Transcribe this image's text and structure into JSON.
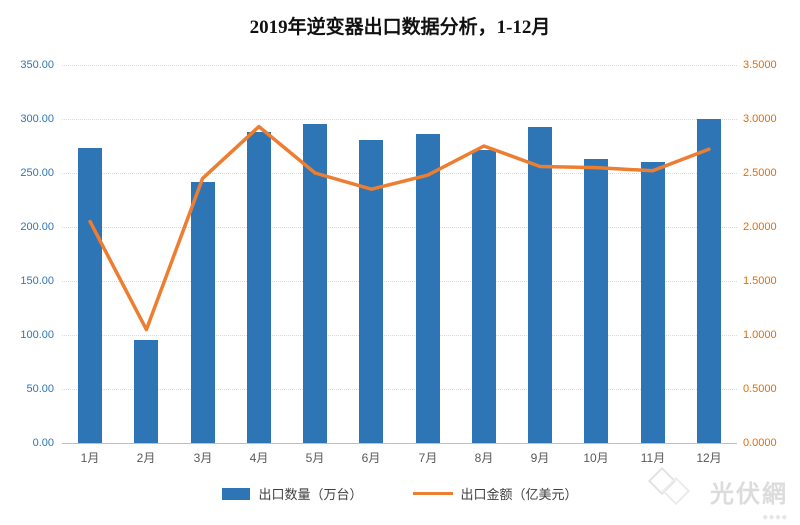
{
  "title": "2019年逆变器出口数据分析，1-12月",
  "chart_data": {
    "type": "bar+line combo",
    "title": "2019年逆变器出口数据分析，1-12月",
    "categories": [
      "1月",
      "2月",
      "3月",
      "4月",
      "5月",
      "6月",
      "7月",
      "8月",
      "9月",
      "10月",
      "11月",
      "12月"
    ],
    "series": [
      {
        "name": "出口数量（万台）",
        "type": "bar",
        "axis": "left",
        "color": "#2E75B6",
        "values": [
          273,
          95,
          242,
          288,
          295,
          281,
          286,
          271,
          293,
          263,
          260,
          300
        ]
      },
      {
        "name": "出口金额（亿美元）",
        "type": "line",
        "axis": "right",
        "color": "#ED7D31",
        "values": [
          2.05,
          1.05,
          2.45,
          2.93,
          2.5,
          2.35,
          2.48,
          2.75,
          2.56,
          2.55,
          2.52,
          2.72
        ]
      }
    ],
    "left_axis": {
      "min": 0,
      "max": 350,
      "step": 50,
      "labels": [
        "0.00",
        "50.00",
        "100.00",
        "150.00",
        "200.00",
        "250.00",
        "300.00",
        "350.00"
      ],
      "color": "#2E75B6"
    },
    "right_axis": {
      "min": 0,
      "max": 3.5,
      "step": 0.5,
      "labels": [
        "0.0000",
        "0.5000",
        "1.0000",
        "1.5000",
        "2.0000",
        "2.5000",
        "3.0000",
        "3.5000"
      ],
      "color": "#E36C09"
    },
    "grid": true,
    "legend_position": "bottom"
  },
  "legend": [
    {
      "label": "出口数量（万台）"
    },
    {
      "label": "出口金额（亿美元）"
    }
  ],
  "watermark": {
    "text": "光伏網"
  }
}
